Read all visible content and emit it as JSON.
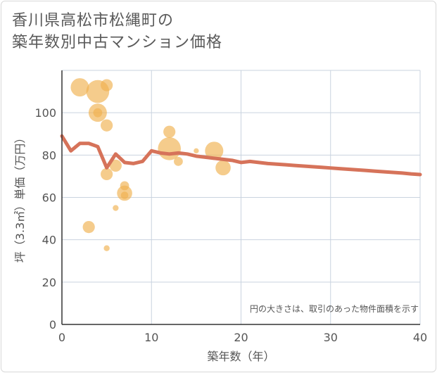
{
  "title_lines": [
    "香川県高松市松縄町の",
    "築年数別中古マンション価格"
  ],
  "chart_data": {
    "type": "scatter",
    "title": "香川県高松市松縄町の築年数別中古マンション価格",
    "xlabel": "築年数（年）",
    "ylabel": "坪（3.3㎡）単価（万円）",
    "xlim": [
      0,
      40
    ],
    "ylim": [
      0,
      120
    ],
    "x_ticks": [
      0,
      10,
      20,
      30,
      40
    ],
    "y_ticks": [
      0,
      20,
      40,
      60,
      80,
      100
    ],
    "grid": true,
    "annotation": "円の大きさは、取引のあった物件面積を示す",
    "bubble_color": "#f0b14f",
    "line_color": "#d6735a",
    "bubbles": [
      {
        "x": 2,
        "y": 112,
        "size": 10
      },
      {
        "x": 4,
        "y": 110,
        "size": 13
      },
      {
        "x": 5,
        "y": 113,
        "size": 6
      },
      {
        "x": 4,
        "y": 100,
        "size": 10
      },
      {
        "x": 4,
        "y": 100,
        "size": 4
      },
      {
        "x": 5,
        "y": 94,
        "size": 6
      },
      {
        "x": 6,
        "y": 75,
        "size": 6
      },
      {
        "x": 5,
        "y": 71,
        "size": 6
      },
      {
        "x": 7,
        "y": 65.5,
        "size": 4
      },
      {
        "x": 7,
        "y": 62,
        "size": 8
      },
      {
        "x": 7,
        "y": 61,
        "size": 3
      },
      {
        "x": 6,
        "y": 55,
        "size": 2
      },
      {
        "x": 3,
        "y": 46,
        "size": 6
      },
      {
        "x": 5,
        "y": 36,
        "size": 2
      },
      {
        "x": 12,
        "y": 91,
        "size": 6
      },
      {
        "x": 12,
        "y": 83,
        "size": 13
      },
      {
        "x": 13,
        "y": 77,
        "size": 4
      },
      {
        "x": 15,
        "y": 82,
        "size": 1.5
      },
      {
        "x": 17,
        "y": 82,
        "size": 10
      },
      {
        "x": 18,
        "y": 74,
        "size": 8
      }
    ],
    "trend_line": {
      "x": [
        0,
        1,
        2,
        3,
        4,
        5,
        6,
        7,
        8,
        9,
        10,
        11,
        12,
        13,
        14,
        15,
        16,
        17,
        18,
        19,
        20,
        21,
        22,
        23,
        24,
        25,
        26,
        27,
        28,
        29,
        30,
        31,
        32,
        33,
        34,
        35,
        36,
        37,
        38,
        39,
        40
      ],
      "y": [
        89,
        82,
        85.5,
        85.5,
        84,
        74,
        80.5,
        76.5,
        76,
        77,
        82,
        81,
        80.5,
        81,
        80.5,
        79.5,
        79,
        78.5,
        78,
        77.5,
        76.5,
        77,
        76.5,
        76,
        75.7,
        75.4,
        75.1,
        74.8,
        74.5,
        74.2,
        73.9,
        73.6,
        73.3,
        73.0,
        72.7,
        72.4,
        72.1,
        71.8,
        71.5,
        71.1,
        70.8
      ]
    }
  }
}
